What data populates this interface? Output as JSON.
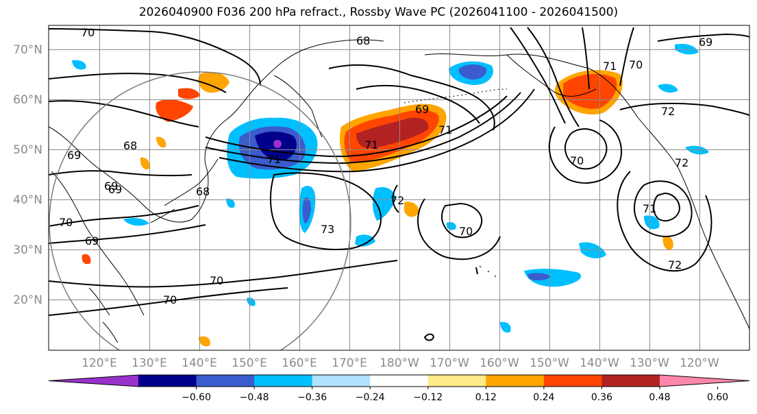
{
  "title": "2026040900 F036 200 hPa refract., Rossby Wave PC (2026041100 - 2026041500)",
  "lat_labels": [
    "70°N",
    "60°N",
    "50°N",
    "40°N",
    "30°N",
    "20°N"
  ],
  "lon_labels": [
    "120°E",
    "130°E",
    "140°E",
    "150°E",
    "160°E",
    "170°E",
    "180°W",
    "170°W",
    "160°W",
    "150°W",
    "140°W",
    "130°W",
    "120°W"
  ],
  "colorbar": {
    "ticks": [
      "−0.60",
      "−0.48",
      "−0.36",
      "−0.24",
      "−0.12",
      "0.12",
      "0.24",
      "0.36",
      "0.48",
      "0.60"
    ],
    "colors": [
      "#9932cc",
      "#00008b",
      "#3a5ccc",
      "#00bfff",
      "#b0e2ff",
      "#ffffff",
      "#ffea8a",
      "#ffa500",
      "#ff4500",
      "#b22222",
      "#ff88aa"
    ]
  },
  "contour_labels": [
    "70",
    "68",
    "69",
    "71",
    "72",
    "70",
    "70",
    "69",
    "68",
    "69",
    "69",
    "71",
    "69",
    "70",
    "71",
    "73",
    "70",
    "70",
    "71",
    "72",
    "71",
    "70",
    "72",
    "69",
    "72",
    "68"
  ]
}
